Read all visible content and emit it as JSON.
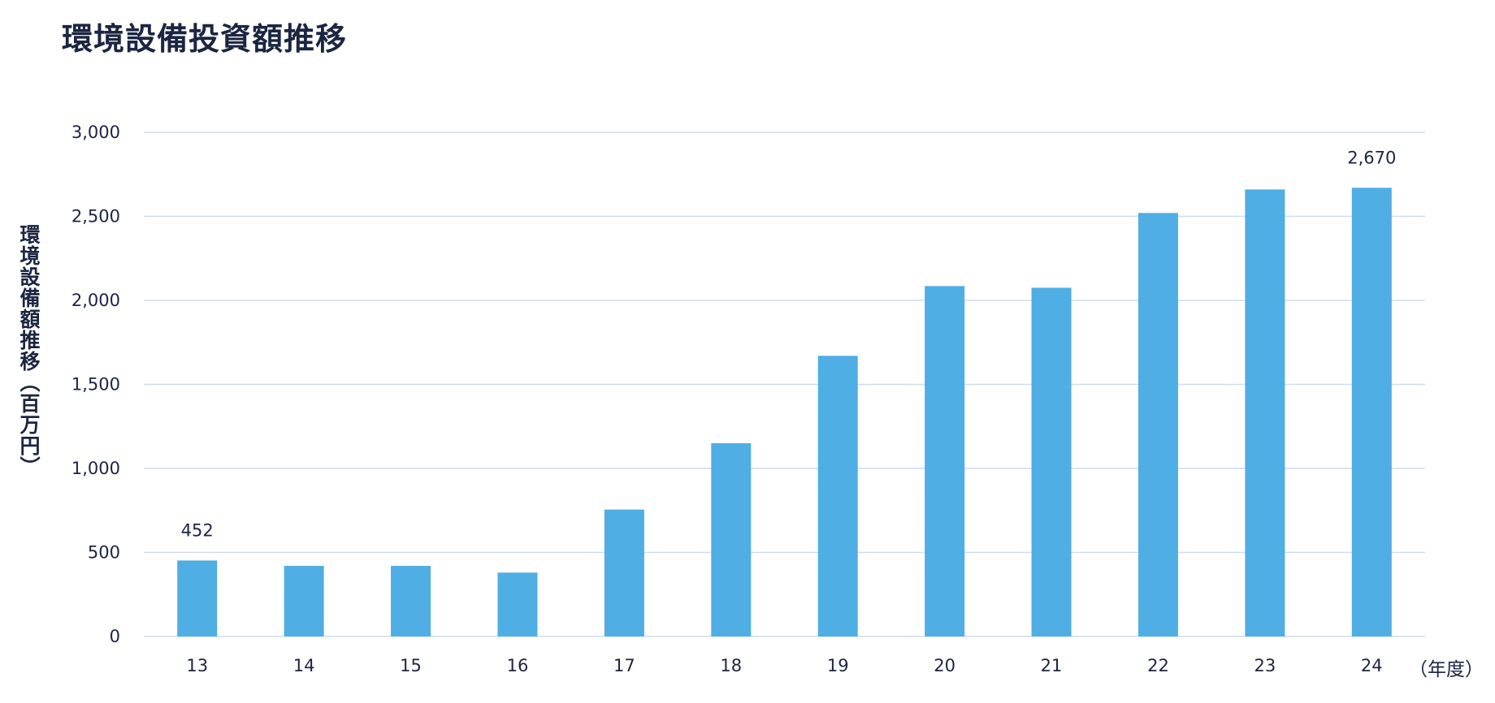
{
  "chart_data": {
    "type": "bar",
    "title": "環境設備投資額推移",
    "ylabel": "環境設備額推移（百万円）",
    "xunit": "（年度）",
    "categories": [
      "13",
      "14",
      "15",
      "16",
      "17",
      "18",
      "19",
      "20",
      "21",
      "22",
      "23",
      "24"
    ],
    "values": [
      452,
      420,
      420,
      380,
      755,
      1150,
      1670,
      2085,
      2075,
      2520,
      2660,
      2670
    ],
    "data_labels": {
      "0": "452",
      "11": "2,670"
    },
    "ylim": [
      0,
      3000
    ],
    "yticks": [
      0,
      500,
      1000,
      1500,
      2000,
      2500,
      3000
    ],
    "ytick_labels": [
      "0",
      "500",
      "1,000",
      "1,500",
      "2,000",
      "2,500",
      "3,000"
    ],
    "grid": true,
    "legend": "none",
    "bar_color": "#4faee3",
    "grid_color": "#cfdcef",
    "text_color": "#1c2541"
  }
}
